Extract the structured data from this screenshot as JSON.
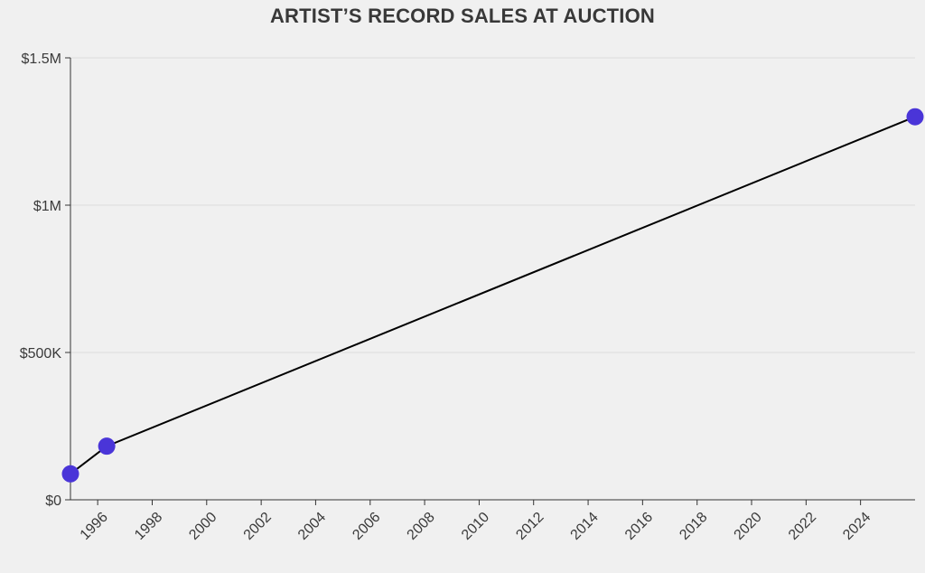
{
  "chart_data": {
    "type": "line",
    "title": "ARTIST’S RECORD SALES AT AUCTION",
    "xlabel": "",
    "ylabel": "",
    "x": [
      "1995-01-01",
      "1996-05-01",
      "2026-01-01"
    ],
    "series": [
      {
        "values": [
          88000,
          182000,
          1300000
        ]
      }
    ],
    "xlim": [
      "1995-01-01",
      "2026-01-01"
    ],
    "ylim": [
      0,
      1500000
    ],
    "x_ticks": [
      "1996",
      "1998",
      "2000",
      "2002",
      "2004",
      "2006",
      "2008",
      "2010",
      "2012",
      "2014",
      "2016",
      "2018",
      "2020",
      "2022",
      "2024"
    ],
    "y_ticks": [
      {
        "value": 0,
        "label": "$0"
      },
      {
        "value": 500000,
        "label": "$500K"
      },
      {
        "value": 1000000,
        "label": "$1M"
      },
      {
        "value": 1500000,
        "label": "$1.5M"
      }
    ],
    "grid": "horizontal",
    "legend": "none",
    "colors": {
      "marker": "#4a35d8",
      "line": "#000000",
      "grid": "#dcdcdc",
      "axis": "#333333",
      "background": "#f0f0f0",
      "title": "#383838"
    }
  }
}
